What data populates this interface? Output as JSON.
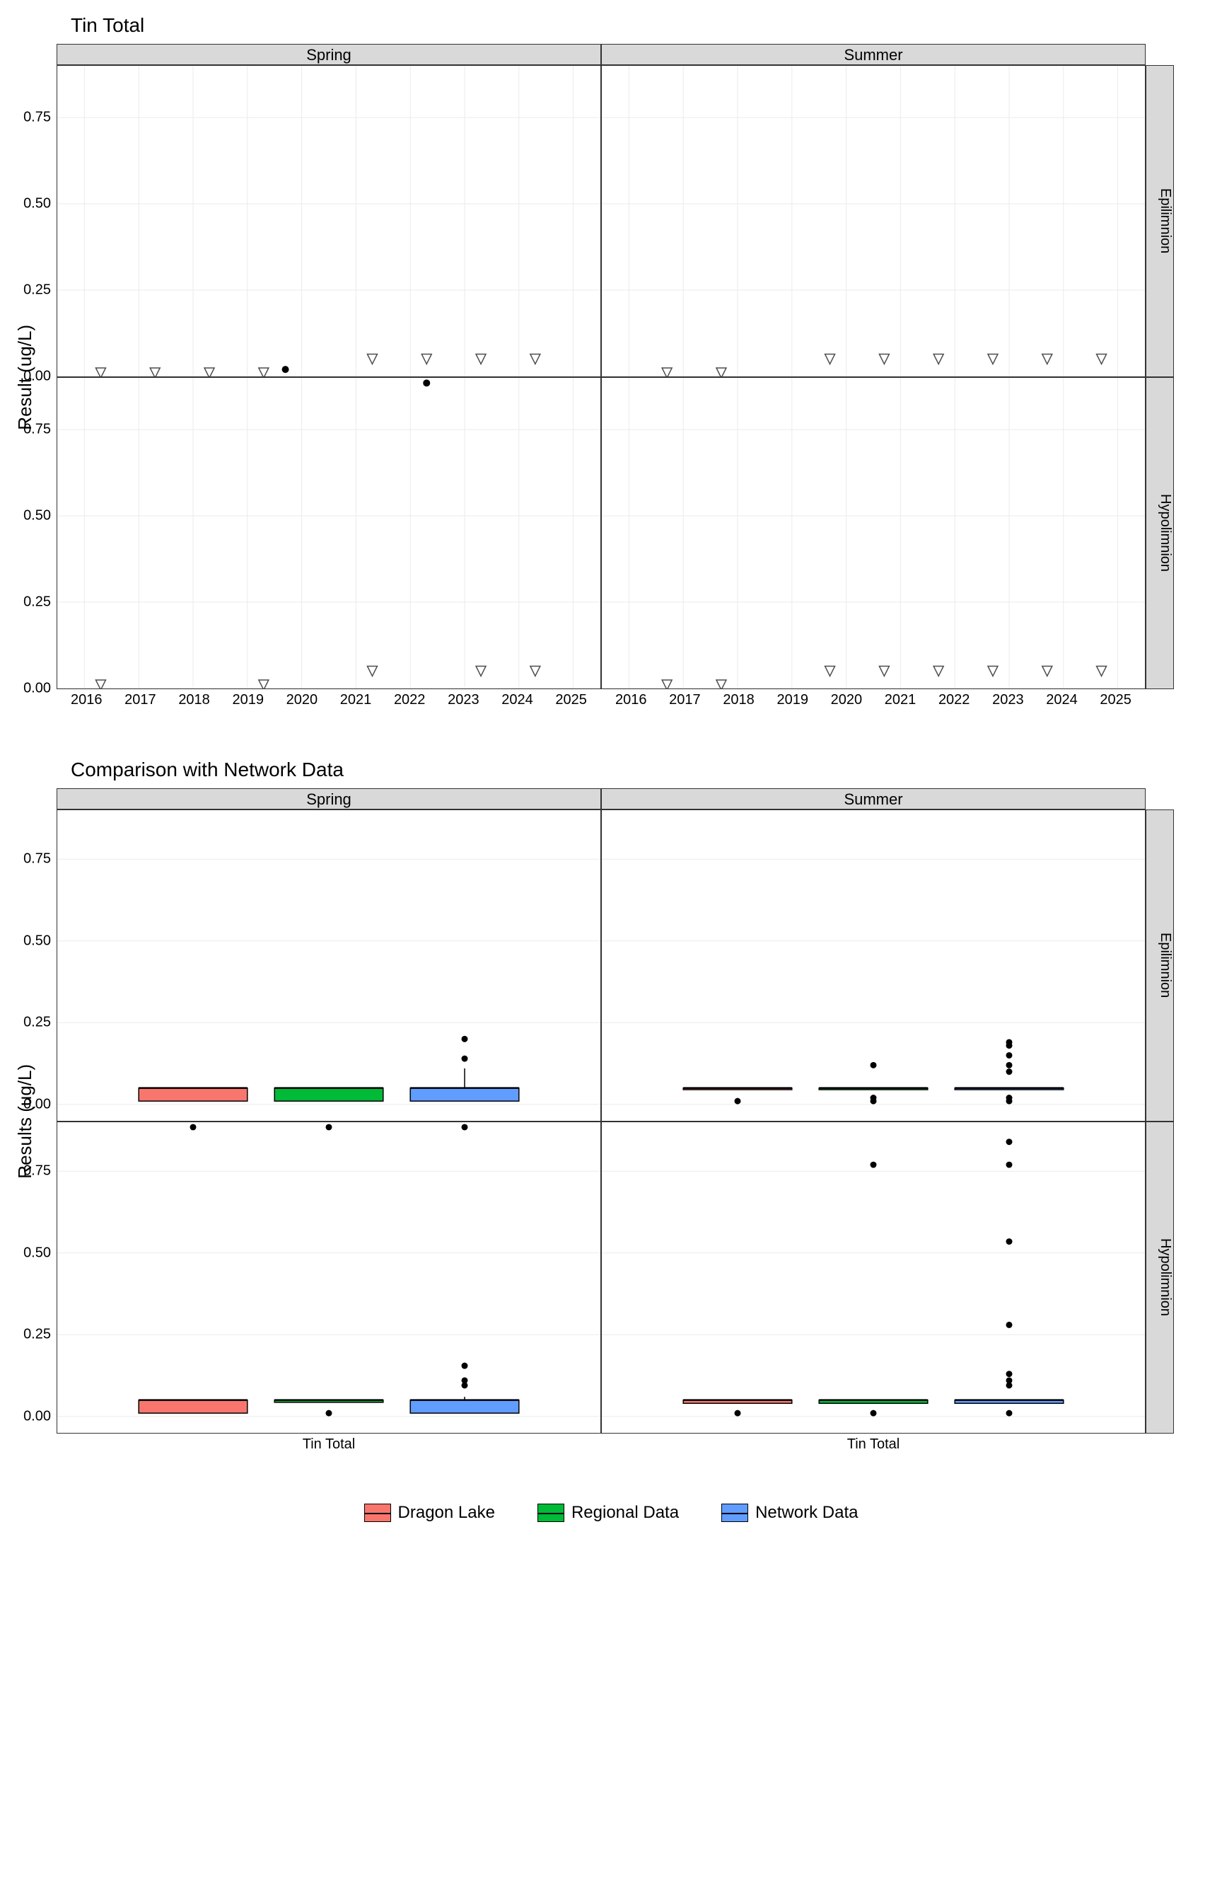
{
  "chart1": {
    "title": "Tin Total",
    "ylabel": "Result (ug/L)",
    "col_labels": [
      "Spring",
      "Summer"
    ],
    "row_labels": [
      "Epilimnion",
      "Hypolimnion"
    ],
    "ylim": [
      0,
      0.9
    ],
    "yticks": [
      0.0,
      0.25,
      0.5,
      0.75
    ],
    "xlim": [
      2015.5,
      2025.5
    ],
    "xticks": [
      2016,
      2017,
      2018,
      2019,
      2020,
      2021,
      2022,
      2023,
      2024,
      2025
    ],
    "grid_color": "#ebebeb",
    "triangle_stroke": "#4d4d4d",
    "dot_color": "#000000",
    "panels": {
      "spring_epi": {
        "triangles": [
          [
            2016.3,
            0.01
          ],
          [
            2017.3,
            0.01
          ],
          [
            2018.3,
            0.01
          ],
          [
            2019.3,
            0.01
          ],
          [
            2021.3,
            0.05
          ],
          [
            2022.3,
            0.05
          ],
          [
            2023.3,
            0.05
          ],
          [
            2024.3,
            0.05
          ]
        ],
        "dots": [
          [
            2019.7,
            0.02
          ]
        ]
      },
      "summer_epi": {
        "triangles": [
          [
            2016.7,
            0.01
          ],
          [
            2017.7,
            0.01
          ],
          [
            2019.7,
            0.05
          ],
          [
            2020.7,
            0.05
          ],
          [
            2021.7,
            0.05
          ],
          [
            2022.7,
            0.05
          ],
          [
            2023.7,
            0.05
          ],
          [
            2024.7,
            0.05
          ]
        ],
        "dots": []
      },
      "spring_hypo": {
        "triangles": [
          [
            2016.3,
            0.01
          ],
          [
            2019.3,
            0.01
          ],
          [
            2021.3,
            0.05
          ],
          [
            2023.3,
            0.05
          ],
          [
            2024.3,
            0.05
          ]
        ],
        "dots": [
          [
            2022.3,
            0.885
          ]
        ]
      },
      "summer_hypo": {
        "triangles": [
          [
            2016.7,
            0.01
          ],
          [
            2017.7,
            0.01
          ],
          [
            2019.7,
            0.05
          ],
          [
            2020.7,
            0.05
          ],
          [
            2021.7,
            0.05
          ],
          [
            2022.7,
            0.05
          ],
          [
            2023.7,
            0.05
          ],
          [
            2024.7,
            0.05
          ]
        ],
        "dots": []
      }
    }
  },
  "chart2": {
    "title": "Comparison with Network Data",
    "ylabel": "Results (ug/L)",
    "col_labels": [
      "Spring",
      "Summer"
    ],
    "row_labels": [
      "Epilimnion",
      "Hypolimnion"
    ],
    "ylim": [
      -0.05,
      0.9
    ],
    "yticks": [
      0.0,
      0.25,
      0.5,
      0.75
    ],
    "x_tick_label": "Tin Total",
    "grid_color": "#ebebeb",
    "colors": {
      "dragon": "#f8766d",
      "regional": "#00ba38",
      "network": "#619cff"
    },
    "panels": {
      "spring_epi": {
        "boxes": [
          {
            "fill": "dragon",
            "x": 0.25,
            "q1": 0.01,
            "med": 0.05,
            "q3": 0.05,
            "wl": 0.01,
            "wu": 0.05,
            "out": []
          },
          {
            "fill": "regional",
            "x": 0.5,
            "q1": 0.01,
            "med": 0.05,
            "q3": 0.05,
            "wl": 0.01,
            "wu": 0.05,
            "out": []
          },
          {
            "fill": "network",
            "x": 0.75,
            "q1": 0.01,
            "med": 0.05,
            "q3": 0.05,
            "wl": 0.01,
            "wu": 0.11,
            "out": [
              0.14,
              0.2
            ]
          }
        ]
      },
      "summer_epi": {
        "boxes": [
          {
            "fill": "dragon",
            "x": 0.25,
            "q1": 0.045,
            "med": 0.05,
            "q3": 0.05,
            "wl": 0.045,
            "wu": 0.05,
            "out": [
              0.01
            ]
          },
          {
            "fill": "regional",
            "x": 0.5,
            "q1": 0.045,
            "med": 0.05,
            "q3": 0.05,
            "wl": 0.045,
            "wu": 0.05,
            "out": [
              0.01,
              0.02,
              0.12
            ]
          },
          {
            "fill": "network",
            "x": 0.75,
            "q1": 0.045,
            "med": 0.05,
            "q3": 0.05,
            "wl": 0.045,
            "wu": 0.05,
            "out": [
              0.01,
              0.02,
              0.1,
              0.12,
              0.15,
              0.18,
              0.19
            ]
          }
        ]
      },
      "spring_hypo": {
        "boxes": [
          {
            "fill": "dragon",
            "x": 0.25,
            "q1": 0.01,
            "med": 0.05,
            "q3": 0.05,
            "wl": 0.01,
            "wu": 0.05,
            "out": [
              0.885
            ]
          },
          {
            "fill": "regional",
            "x": 0.5,
            "q1": 0.043,
            "med": 0.05,
            "q3": 0.05,
            "wl": 0.043,
            "wu": 0.05,
            "out": [
              0.01,
              0.885
            ]
          },
          {
            "fill": "network",
            "x": 0.75,
            "q1": 0.01,
            "med": 0.05,
            "q3": 0.05,
            "wl": 0.01,
            "wu": 0.06,
            "out": [
              0.095,
              0.11,
              0.155,
              0.885
            ]
          }
        ]
      },
      "summer_hypo": {
        "boxes": [
          {
            "fill": "dragon",
            "x": 0.25,
            "q1": 0.04,
            "med": 0.05,
            "q3": 0.05,
            "wl": 0.04,
            "wu": 0.05,
            "out": [
              0.01
            ]
          },
          {
            "fill": "regional",
            "x": 0.5,
            "q1": 0.04,
            "med": 0.05,
            "q3": 0.05,
            "wl": 0.04,
            "wu": 0.05,
            "out": [
              0.01,
              0.77
            ]
          },
          {
            "fill": "network",
            "x": 0.75,
            "q1": 0.04,
            "med": 0.05,
            "q3": 0.05,
            "wl": 0.04,
            "wu": 0.05,
            "out": [
              0.01,
              0.095,
              0.11,
              0.13,
              0.28,
              0.535,
              0.77,
              0.84
            ]
          }
        ]
      }
    }
  },
  "legend": {
    "items": [
      {
        "label": "Dragon Lake",
        "color": "#f8766d"
      },
      {
        "label": "Regional Data",
        "color": "#00ba38"
      },
      {
        "label": "Network Data",
        "color": "#619cff"
      }
    ]
  }
}
